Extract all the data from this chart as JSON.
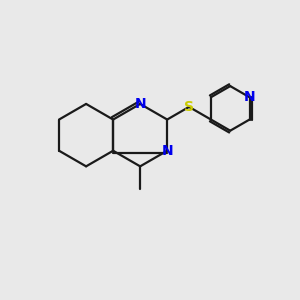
{
  "bg_color": "#e9e9e9",
  "bond_color": "#1a1a1a",
  "nitrogen_color": "#0000ee",
  "sulfur_color": "#cccc00",
  "bond_width": 1.6,
  "font_size": 10,
  "fig_size": [
    3.0,
    3.0
  ],
  "dpi": 100,
  "xlim": [
    0,
    10
  ],
  "ylim": [
    0,
    10
  ]
}
